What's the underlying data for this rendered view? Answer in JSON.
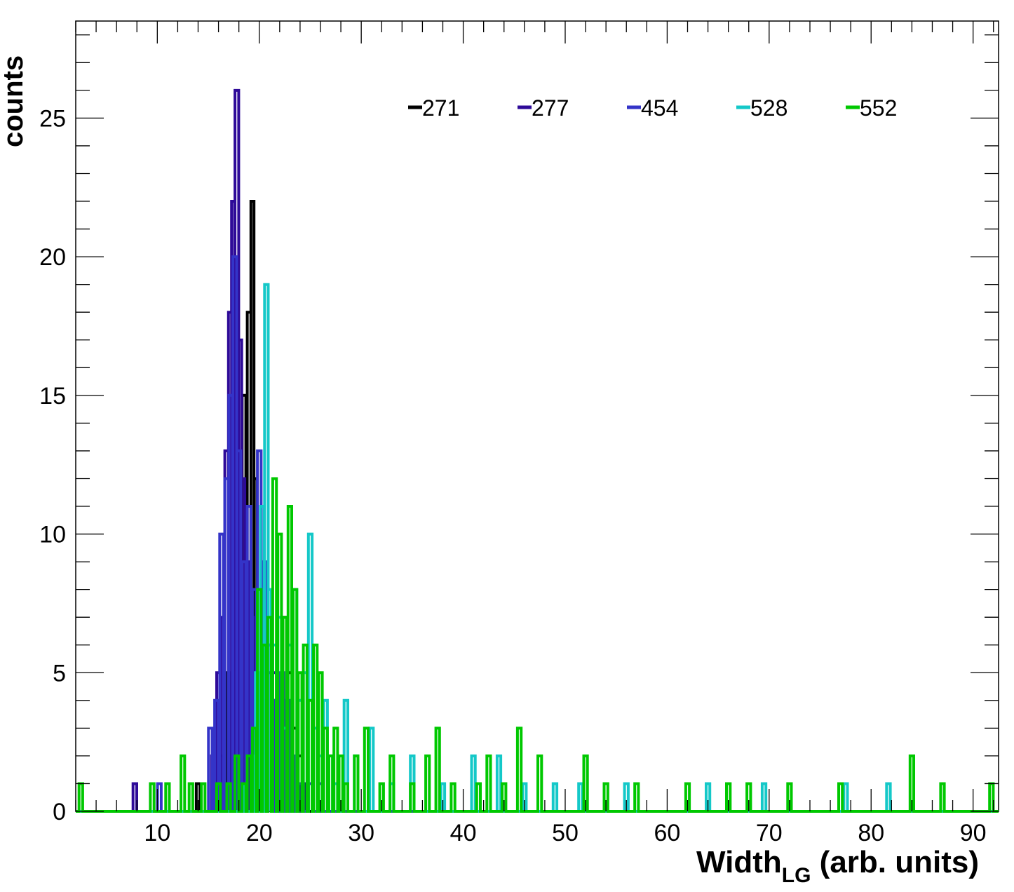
{
  "chart_data": {
    "type": "histogram",
    "xlabel_main": "Width",
    "xlabel_sub": "LG",
    "xlabel_rest": " (arb. units)",
    "ylabel": "counts",
    "xlim": [
      2,
      92.5
    ],
    "ylim": [
      0,
      28.5
    ],
    "x_ticks": [
      10,
      20,
      30,
      40,
      50,
      60,
      70,
      80,
      90
    ],
    "y_ticks": [
      0,
      5,
      10,
      15,
      20,
      25
    ],
    "x_minor_step": 2,
    "y_minor_step": 1,
    "legend_position": "top",
    "series": [
      {
        "name": "271",
        "color": "#000000",
        "points": [
          [
            14.0,
            1
          ],
          [
            15.8,
            1
          ],
          [
            16.4,
            2
          ],
          [
            17.0,
            5
          ],
          [
            17.5,
            8
          ],
          [
            18.0,
            10
          ],
          [
            18.5,
            15
          ],
          [
            19.0,
            18
          ],
          [
            19.3,
            22
          ],
          [
            19.6,
            12
          ],
          [
            20.0,
            4
          ],
          [
            20.5,
            7
          ],
          [
            21.0,
            5
          ],
          [
            21.5,
            4
          ],
          [
            22.0,
            3
          ],
          [
            22.5,
            7
          ],
          [
            23.0,
            5
          ],
          [
            23.5,
            3
          ],
          [
            24.0,
            2
          ],
          [
            24.6,
            1
          ]
        ]
      },
      {
        "name": "277",
        "color": "#2e0a98",
        "points": [
          [
            7.8,
            1
          ],
          [
            15.5,
            2
          ],
          [
            16.0,
            5
          ],
          [
            16.4,
            7
          ],
          [
            16.8,
            13
          ],
          [
            17.1,
            18
          ],
          [
            17.4,
            22
          ],
          [
            17.8,
            26
          ],
          [
            18.1,
            17
          ],
          [
            18.4,
            12
          ],
          [
            18.8,
            9
          ],
          [
            19.2,
            7
          ],
          [
            19.6,
            5
          ],
          [
            20.0,
            3
          ],
          [
            20.5,
            4
          ],
          [
            21.0,
            6
          ],
          [
            21.5,
            5
          ],
          [
            22.0,
            4
          ],
          [
            22.5,
            2
          ],
          [
            23.0,
            3
          ],
          [
            23.5,
            1
          ],
          [
            24.2,
            1
          ],
          [
            25.0,
            1
          ]
        ]
      },
      {
        "name": "454",
        "color": "#3434c8",
        "points": [
          [
            10.2,
            1
          ],
          [
            15.2,
            3
          ],
          [
            15.8,
            4
          ],
          [
            16.3,
            10
          ],
          [
            16.8,
            12
          ],
          [
            17.2,
            15
          ],
          [
            17.6,
            20
          ],
          [
            18.0,
            13
          ],
          [
            18.5,
            9
          ],
          [
            19.0,
            11
          ],
          [
            19.5,
            8
          ],
          [
            20.0,
            13
          ],
          [
            20.5,
            9
          ],
          [
            21.0,
            6
          ],
          [
            21.6,
            4
          ],
          [
            22.2,
            5
          ],
          [
            22.8,
            4
          ],
          [
            23.4,
            2
          ],
          [
            24.0,
            1
          ],
          [
            25.0,
            1
          ],
          [
            26.0,
            1
          ]
        ]
      },
      {
        "name": "528",
        "color": "#14c8c8",
        "points": [
          [
            18.6,
            1
          ],
          [
            19.4,
            2
          ],
          [
            19.8,
            5
          ],
          [
            20.3,
            11
          ],
          [
            20.7,
            19
          ],
          [
            21.0,
            8
          ],
          [
            21.5,
            6
          ],
          [
            22.0,
            7
          ],
          [
            22.5,
            3
          ],
          [
            23.0,
            6
          ],
          [
            23.5,
            8
          ],
          [
            24.0,
            4
          ],
          [
            24.5,
            5
          ],
          [
            25.0,
            10
          ],
          [
            25.5,
            3
          ],
          [
            26.0,
            2
          ],
          [
            26.5,
            4
          ],
          [
            27.0,
            2
          ],
          [
            27.5,
            1
          ],
          [
            28.5,
            4
          ],
          [
            29.5,
            2
          ],
          [
            31.0,
            3
          ],
          [
            33.0,
            1
          ],
          [
            35.0,
            2
          ],
          [
            38.0,
            1
          ],
          [
            41.0,
            2
          ],
          [
            43.5,
            2
          ],
          [
            46.0,
            1
          ],
          [
            49.0,
            1
          ],
          [
            51.5,
            1
          ],
          [
            56.0,
            1
          ],
          [
            64.0,
            1
          ],
          [
            69.5,
            1
          ],
          [
            77.5,
            1
          ],
          [
            81.7,
            1
          ]
        ]
      },
      {
        "name": "552",
        "color": "#00c800",
        "points": [
          [
            2.5,
            1
          ],
          [
            9.5,
            1
          ],
          [
            11.0,
            1
          ],
          [
            12.5,
            2
          ],
          [
            13.3,
            1
          ],
          [
            14.5,
            1
          ],
          [
            16.0,
            1
          ],
          [
            17.0,
            1
          ],
          [
            17.8,
            2
          ],
          [
            18.5,
            1
          ],
          [
            19.0,
            2
          ],
          [
            19.5,
            3
          ],
          [
            20.0,
            8
          ],
          [
            20.5,
            6
          ],
          [
            21.0,
            7
          ],
          [
            21.5,
            12
          ],
          [
            22.0,
            10
          ],
          [
            22.5,
            7
          ],
          [
            23.0,
            11
          ],
          [
            23.5,
            8
          ],
          [
            24.0,
            5
          ],
          [
            24.5,
            6
          ],
          [
            25.0,
            4
          ],
          [
            25.5,
            6
          ],
          [
            26.0,
            5
          ],
          [
            26.5,
            3
          ],
          [
            27.0,
            2
          ],
          [
            27.5,
            3
          ],
          [
            28.0,
            2
          ],
          [
            28.5,
            1
          ],
          [
            29.5,
            2
          ],
          [
            30.5,
            3
          ],
          [
            32.0,
            1
          ],
          [
            33.0,
            2
          ],
          [
            35.0,
            1
          ],
          [
            36.5,
            2
          ],
          [
            37.5,
            3
          ],
          [
            39.0,
            1
          ],
          [
            41.5,
            1
          ],
          [
            42.5,
            2
          ],
          [
            44.0,
            1
          ],
          [
            45.5,
            3
          ],
          [
            47.5,
            2
          ],
          [
            52.0,
            2
          ],
          [
            54.0,
            1
          ],
          [
            57.0,
            1
          ],
          [
            62.0,
            1
          ],
          [
            66.0,
            1
          ],
          [
            68.0,
            1
          ],
          [
            72.0,
            1
          ],
          [
            77.0,
            1
          ],
          [
            84.0,
            2
          ],
          [
            87.0,
            1
          ],
          [
            91.8,
            1
          ]
        ]
      }
    ]
  }
}
